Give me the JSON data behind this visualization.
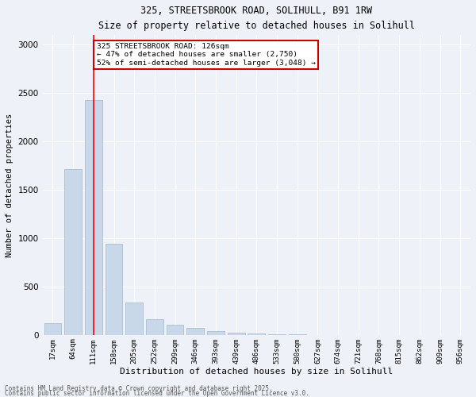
{
  "title_line1": "325, STREETSBROOK ROAD, SOLIHULL, B91 1RW",
  "title_line2": "Size of property relative to detached houses in Solihull",
  "xlabel": "Distribution of detached houses by size in Solihull",
  "ylabel": "Number of detached properties",
  "categories": [
    "17sqm",
    "64sqm",
    "111sqm",
    "158sqm",
    "205sqm",
    "252sqm",
    "299sqm",
    "346sqm",
    "393sqm",
    "439sqm",
    "486sqm",
    "533sqm",
    "580sqm",
    "627sqm",
    "674sqm",
    "721sqm",
    "768sqm",
    "815sqm",
    "862sqm",
    "909sqm",
    "956sqm"
  ],
  "values": [
    130,
    1720,
    2430,
    950,
    340,
    165,
    110,
    75,
    45,
    30,
    20,
    12,
    8,
    5,
    3,
    2,
    1,
    1,
    0,
    0,
    0
  ],
  "bar_color": "#c8d8e8",
  "bar_edge_color": "#a0b8cc",
  "red_line_x": 2,
  "ylim": [
    0,
    3100
  ],
  "yticks": [
    0,
    500,
    1000,
    1500,
    2000,
    2500,
    3000
  ],
  "annotation_text": "325 STREETSBROOK ROAD: 126sqm\n← 47% of detached houses are smaller (2,750)\n52% of semi-detached houses are larger (3,048) →",
  "annotation_box_color": "#ffffff",
  "annotation_box_edge": "#cc0000",
  "footer_line1": "Contains HM Land Registry data © Crown copyright and database right 2025.",
  "footer_line2": "Contains public sector information licensed under the Open Government Licence v3.0.",
  "background_color": "#eef2f8",
  "grid_color": "#ffffff"
}
